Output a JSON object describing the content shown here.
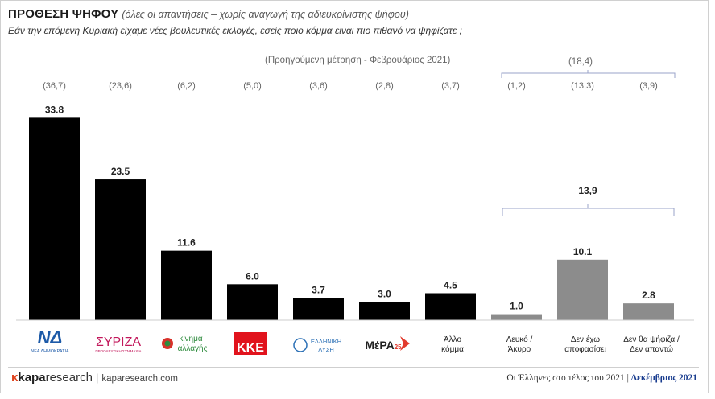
{
  "header": {
    "title": "ΠΡΟΘΕΣΗ ΨΗΦΟΥ",
    "subtitle": "(όλες οι απαντήσεις – χωρίς αναγωγή της αδιευκρίνιστης ψήφου)",
    "question": "Εάν την επόμενη Κυριακή είχαμε νέες βουλευτικές εκλογές, εσείς ποιο κόμμα είναι πιο πιθανό να ψηφίζατε ;"
  },
  "previous_note": "(Προηγούμενη μέτρηση - Φεβρουάριος 2021)",
  "colors": {
    "party_bar": "#000000",
    "other_bar": "#8c8c8c",
    "bracket": "#9aa3c9",
    "brand_accent": "#e0451f",
    "date": "#1a3d8f"
  },
  "chart_data": {
    "type": "bar",
    "categories": [
      "ΝΔ",
      "ΣΥΡΙΖΑ",
      "κίνημα αλλαγής",
      "ΚΚΕ",
      "ΕΛΛΗΝΙΚΗ ΛΥΣΗ",
      "ΜέΡΑ25",
      "Άλλο κόμμα",
      "Λευκό / Άκυρο",
      "Δεν έχω αποφασίσει",
      "Δεν θα ψήφιζα / Δεν απαντώ"
    ],
    "values": [
      33.8,
      23.5,
      11.6,
      6.0,
      3.7,
      3.0,
      4.5,
      1.0,
      10.1,
      2.8
    ],
    "value_labels": [
      "33.8",
      "23.5",
      "11.6",
      "6.0",
      "3.7",
      "3.0",
      "4.5",
      "1.0",
      "10.1",
      "2.8"
    ],
    "previous_labels": [
      "(36,7)",
      "(23,6)",
      "(6,2)",
      "(5,0)",
      "(3,6)",
      "(2,8)",
      "(3,7)",
      "(1,2)",
      "(13,3)",
      "(3,9)"
    ],
    "bar_groups": [
      "party",
      "party",
      "party",
      "party",
      "party",
      "party",
      "party",
      "other",
      "other",
      "other"
    ],
    "group_total": "13,9",
    "previous_group_total": "(18,4)",
    "ylim": [
      0,
      36
    ]
  },
  "labels": {
    "nd_logo": "ΝΔ",
    "nd_sub": "ΝΕΑ ΔΗΜΟΚΡΑΤΙΑ",
    "syriza_logo": "ΣΥΡΙΖΑ",
    "syriza_sub": "ΠΡΟΟΔΕΥΤΙΚΗ ΣΥΜΜΑΧΙΑ",
    "kinal_line1": "κίνημα",
    "kinal_line2": "αλλαγής",
    "kke_logo": "ΚΚΕ",
    "el_line1": "ΕΛΛΗΝΙΚΗ",
    "el_line2": "ΛΥΣΗ",
    "mera_logo": "ΜέΡΑ",
    "mera_num": "25",
    "allo_line1": "Άλλο",
    "allo_line2": "κόμμα",
    "lefko_line1": "Λευκό /",
    "lefko_line2": "Άκυρο",
    "den_line1": "Δεν έχω",
    "den_line2": "αποφασίσει",
    "denthe_line1": "Δεν θα ψήφιζα /",
    "denthe_line2": "Δεν απαντώ"
  },
  "footer": {
    "brand_icon": "κ",
    "brand_name_bold": "kapa",
    "brand_name": "research",
    "brand_separator": "|",
    "brand_url": "kaparesearch.com",
    "source_text": "Οι Έλληνες στο τέλος του 2021",
    "source_separator": "|",
    "source_date": "Δεκέμβριος 2021"
  }
}
